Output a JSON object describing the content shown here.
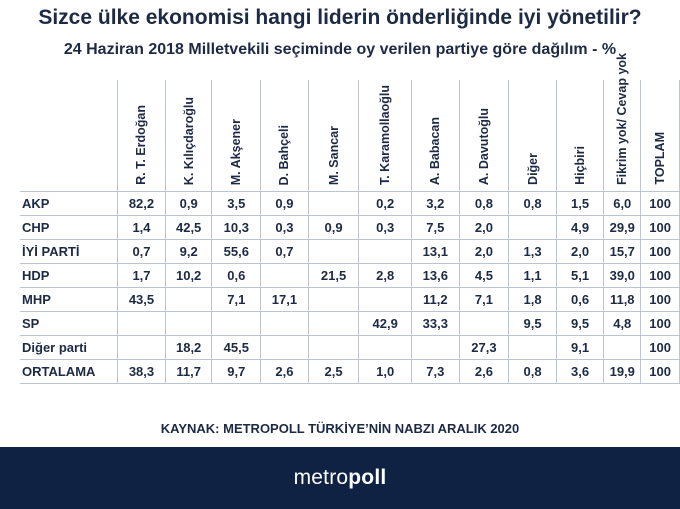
{
  "title": "Sizce ülke ekonomisi hangi liderin önderliğinde iyi yönetilir?",
  "subtitle": "24 Haziran 2018 Milletvekili seçiminde oy verilen partiye göre dağılım - %",
  "source": "KAYNAK: METROPOLL TÜRKİYE’NİN NABZI ARALIK 2020",
  "brand": {
    "part1": "metro",
    "part2": "poll"
  },
  "colors": {
    "text": "#1d2a44",
    "highlight": "#e11d22",
    "footer_bg": "#0f2244",
    "grid": "#bcc4d2"
  },
  "chart_data": {
    "type": "table",
    "columns": [
      "R. T. Erdoğan",
      "K. Kılıçdaroğlu",
      "M. Akşener",
      "D. Bahçeli",
      "M. Sancar",
      "T. Karamollaoğlu",
      "A. Babacan",
      "A. Davutoğlu",
      "Diğer",
      "Hiçbiri",
      "Fikrim yok/ Cevap yok",
      "TOPLAM"
    ],
    "rows": [
      {
        "label": "AKP",
        "values": [
          "82,2",
          "0,9",
          "3,5",
          "0,9",
          "",
          "0,2",
          "3,2",
          "0,8",
          "0,8",
          "1,5",
          "6,0",
          "100"
        ],
        "highlight": 0
      },
      {
        "label": "CHP",
        "values": [
          "1,4",
          "42,5",
          "10,3",
          "0,3",
          "0,9",
          "0,3",
          "7,5",
          "2,0",
          "",
          "4,9",
          "29,9",
          "100"
        ],
        "highlight": 1
      },
      {
        "label": "İYİ PARTİ",
        "values": [
          "0,7",
          "9,2",
          "55,6",
          "0,7",
          "",
          "",
          "13,1",
          "2,0",
          "1,3",
          "2,0",
          "15,7",
          "100"
        ],
        "highlight": 2
      },
      {
        "label": "HDP",
        "values": [
          "1,7",
          "10,2",
          "0,6",
          "",
          "21,5",
          "2,8",
          "13,6",
          "4,5",
          "1,1",
          "5,1",
          "39,0",
          "100"
        ],
        "highlight": null
      },
      {
        "label": "MHP",
        "values": [
          "43,5",
          "",
          "7,1",
          "17,1",
          "",
          "",
          "11,2",
          "7,1",
          "1,8",
          "0,6",
          "11,8",
          "100"
        ],
        "highlight": 3
      },
      {
        "label": "SP",
        "values": [
          "",
          "",
          "",
          "",
          "",
          "42,9",
          "33,3",
          "",
          "9,5",
          "9,5",
          "4,8",
          "100"
        ],
        "highlight": null
      },
      {
        "label": "Diğer parti",
        "values": [
          "",
          "18,2",
          "45,5",
          "",
          "",
          "",
          "",
          "27,3",
          "",
          "9,1",
          "",
          "100"
        ],
        "highlight": null
      },
      {
        "label": "ORTALAMA",
        "values": [
          "38,3",
          "11,7",
          "9,7",
          "2,6",
          "2,5",
          "1,0",
          "7,3",
          "2,6",
          "0,8",
          "3,6",
          "19,9",
          "100"
        ],
        "highlight": null
      }
    ]
  }
}
